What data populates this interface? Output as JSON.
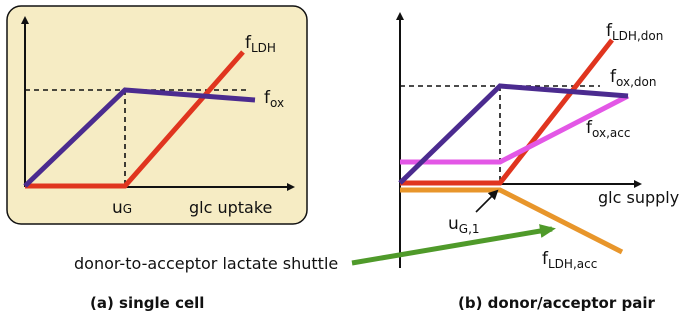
{
  "colors": {
    "panel_fill": "#f6ecc4",
    "axis": "#111111",
    "ox": "#4b2b8f",
    "ldh": "#e0351f",
    "ox_acc": "#e357e6",
    "ldh_acc": "#e8962b",
    "shuttle_arrow": "#4f9a2a"
  },
  "panel_a": {
    "f_ldh_main": "f",
    "f_ldh_sub": "LDH",
    "f_ox_main": "f",
    "f_ox_sub": "ox",
    "u_main": "u",
    "u_sub": "G",
    "x_axis_label": "glc uptake",
    "caption": "(a) single cell"
  },
  "panel_b": {
    "f_ldh_don_main": "f",
    "f_ldh_don_sub": "LDH,don",
    "f_ox_don_main": "f",
    "f_ox_don_sub": "ox,don",
    "f_ox_acc_main": "f",
    "f_ox_acc_sub": "ox,acc",
    "u_main": "u",
    "u_sub": "G,1",
    "x_axis_label": "glc supply",
    "f_ldh_acc_main": "f",
    "f_ldh_acc_sub": "LDH,acc",
    "caption": "(b) donor/acceptor pair"
  },
  "shuttle_label": "donor-to-acceptor lactate shuttle"
}
